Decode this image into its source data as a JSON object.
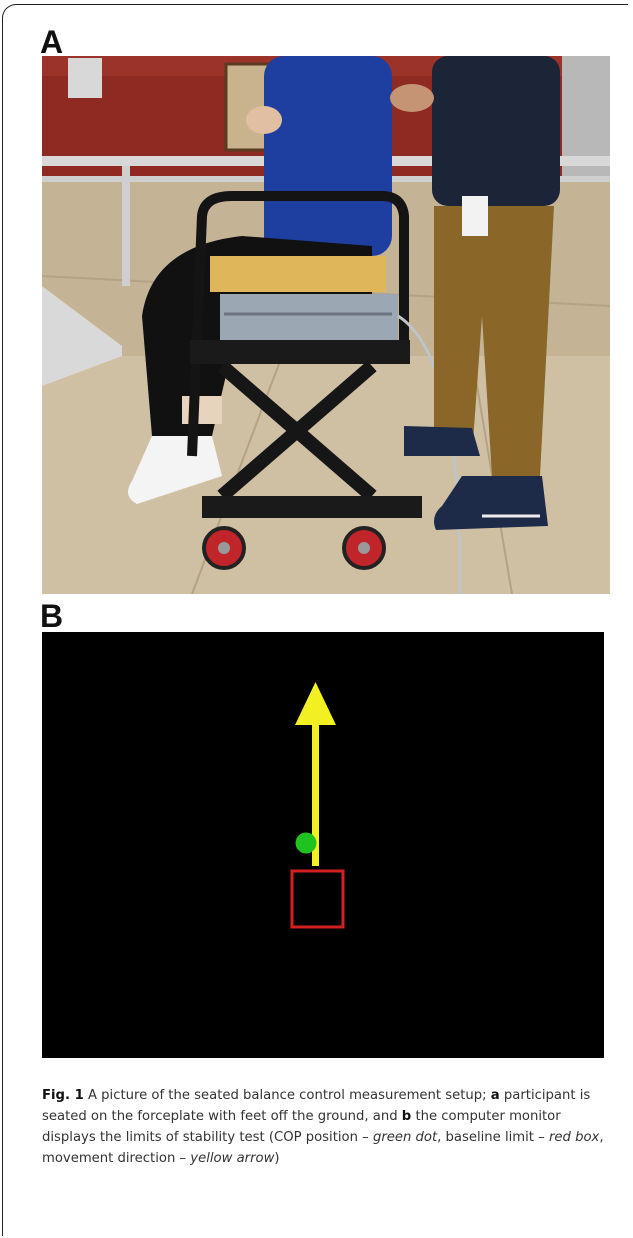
{
  "figure": {
    "panel_a_label": "A",
    "panel_b_label": "B",
    "panel_a_image": "photo-seated-participant-on-forceplate",
    "panel_b_image": "monitor-limits-of-stability-display",
    "colors": {
      "cop_dot": "#1fc21f",
      "baseline_box": "#d42020",
      "arrow": "#f2ef22",
      "screen_bg": "#000000"
    }
  },
  "caption": {
    "fig_label": "Fig. 1",
    "text1": " A picture of the seated balance control measurement setup; ",
    "a_marker": "a",
    "text2": " participant is seated on the forceplate with feet off the ground, and ",
    "b_marker": "b",
    "text3": " the computer monitor displays the limits of stability test (COP position – ",
    "green_dot": "green dot",
    "text4": ", baseline limit – ",
    "red_box": "red box",
    "text5": ", movement direction – ",
    "yellow_arrow": "yellow arrow",
    "text6": ")"
  }
}
